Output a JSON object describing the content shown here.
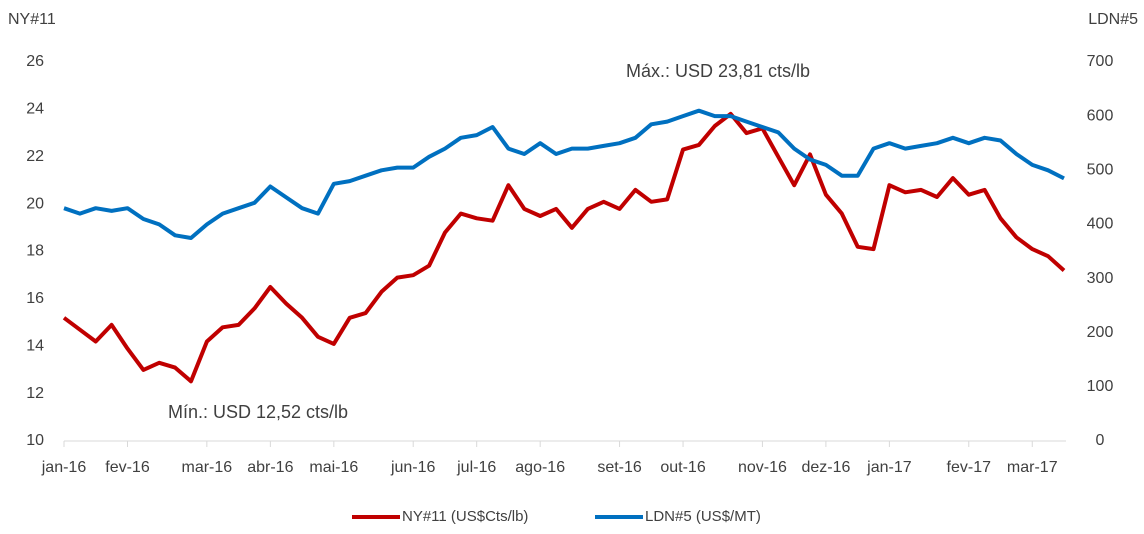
{
  "chart_data": {
    "type": "line",
    "y_title": "NY#11",
    "y2_title": "LDN#5",
    "annotations": [
      "Máx.: USD 23,81 cts/lb",
      "Mín.: USD 12,52 cts/lb"
    ],
    "categories": [
      "jan-16",
      null,
      null,
      null,
      "fev-16",
      null,
      null,
      null,
      null,
      "mar-16",
      null,
      null,
      null,
      "abr-16",
      null,
      null,
      null,
      "mai-16",
      null,
      null,
      null,
      null,
      "jun-16",
      null,
      null,
      null,
      "jul-16",
      null,
      null,
      null,
      "ago-16",
      null,
      null,
      null,
      null,
      "set-16",
      null,
      null,
      null,
      "out-16",
      null,
      null,
      null,
      null,
      "nov-16",
      null,
      null,
      null,
      "dez-16",
      null,
      null,
      null,
      "jan-17",
      null,
      null,
      null,
      null,
      "fev-17",
      null,
      null,
      null,
      "mar-17",
      null,
      null
    ],
    "series": [
      {
        "name": "NY#11 (US$Cts/lb)",
        "color": "#c00000",
        "values": [
          15.2,
          14.7,
          14.2,
          14.9,
          13.9,
          13.0,
          13.3,
          13.1,
          12.52,
          14.2,
          14.8,
          14.9,
          15.6,
          16.5,
          15.8,
          15.2,
          14.4,
          14.1,
          15.2,
          15.4,
          16.3,
          16.9,
          17.0,
          17.4,
          18.8,
          19.6,
          19.4,
          19.3,
          20.8,
          19.8,
          19.5,
          19.8,
          19.0,
          19.8,
          20.1,
          19.8,
          20.6,
          20.1,
          20.2,
          22.3,
          22.5,
          23.3,
          23.81,
          23.0,
          23.2,
          22.0,
          20.8,
          22.1,
          20.4,
          19.6,
          18.2,
          18.1,
          20.8,
          20.5,
          20.6,
          20.3,
          21.1,
          20.4,
          20.6,
          19.4,
          18.6,
          18.1,
          17.8,
          17.2
        ]
      },
      {
        "name": "LDN#5 (US$/MT)",
        "color": "#0070c0",
        "axis": "y2",
        "values": [
          430,
          420,
          430,
          425,
          430,
          410,
          400,
          380,
          375,
          400,
          420,
          430,
          440,
          470,
          450,
          430,
          420,
          475,
          480,
          490,
          500,
          505,
          505,
          525,
          540,
          560,
          565,
          580,
          540,
          530,
          550,
          530,
          540,
          540,
          545,
          550,
          560,
          585,
          590,
          600,
          610,
          600,
          600,
          590,
          580,
          570,
          540,
          520,
          510,
          490,
          490,
          540,
          550,
          540,
          545,
          550,
          560,
          550,
          560,
          555,
          530,
          510,
          500,
          485
        ]
      }
    ],
    "ylim": [
      10,
      26
    ],
    "yticks": [
      10,
      12,
      14,
      16,
      18,
      20,
      22,
      24,
      26
    ],
    "y2lim": [
      0,
      700
    ],
    "y2ticks": [
      0,
      100,
      200,
      300,
      400,
      500,
      600,
      700
    ],
    "legend": "bottom",
    "grid": false
  }
}
